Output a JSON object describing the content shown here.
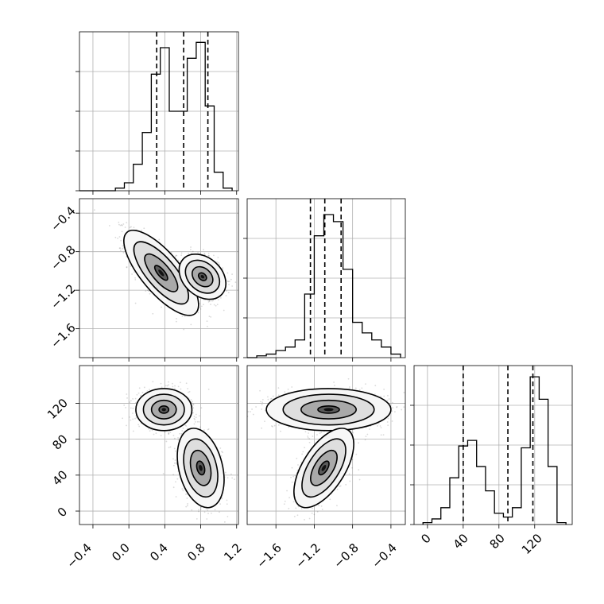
{
  "chart_data": {
    "type": "corner",
    "parameters": [
      {
        "name": "",
        "range": [
          -0.55,
          1.22
        ],
        "ticks": [
          -0.4,
          0.0,
          0.4,
          0.8,
          1.2
        ]
      },
      {
        "name": "",
        "range": [
          -1.9,
          -0.25
        ],
        "ticks": [
          -1.6,
          -1.2,
          -0.8,
          -0.4
        ]
      },
      {
        "name": "",
        "range": [
          -15,
          162
        ],
        "ticks": [
          0,
          40,
          80,
          120
        ]
      }
    ],
    "tick_labels": {
      "p0": [
        "−0.4",
        "0.0",
        "0.4",
        "0.8",
        "1.2"
      ],
      "p1": [
        "−1.6",
        "−1.2",
        "−0.8",
        "−0.4"
      ],
      "p2": [
        "0",
        "40",
        "80",
        "120"
      ]
    },
    "marginals": [
      {
        "param": 0,
        "bin_edges": [
          -0.55,
          -0.45,
          -0.35,
          -0.25,
          -0.15,
          -0.05,
          0.05,
          0.15,
          0.25,
          0.35,
          0.45,
          0.55,
          0.65,
          0.75,
          0.85,
          0.95,
          1.05,
          1.15
        ],
        "bin_values": [
          0,
          0,
          0,
          0,
          1,
          3,
          10,
          22,
          44,
          54,
          30,
          30,
          50,
          56,
          32,
          7,
          1
        ],
        "quantiles": [
          0.31,
          0.61,
          0.88
        ],
        "ylim": [
          0,
          60
        ]
      },
      {
        "param": 1,
        "bin_edges": [
          -1.9,
          -1.8,
          -1.7,
          -1.6,
          -1.5,
          -1.4,
          -1.3,
          -1.2,
          -1.1,
          -1.0,
          -0.9,
          -0.8,
          -0.7,
          -0.6,
          -0.5,
          -0.4,
          -0.3
        ],
        "bin_values": [
          0,
          1,
          2,
          4,
          6,
          10,
          36,
          69,
          81,
          77,
          50,
          20,
          14,
          10,
          6,
          2
        ],
        "quantiles": [
          -1.24,
          -1.09,
          -0.92
        ],
        "ylim": [
          0,
          90
        ]
      },
      {
        "param": 2,
        "bin_edges": [
          -5,
          5,
          15,
          25,
          35,
          45,
          55,
          65,
          75,
          85,
          95,
          105,
          115,
          125,
          135,
          145,
          155
        ],
        "bin_values": [
          1,
          3,
          9,
          25,
          42,
          45,
          31,
          18,
          6,
          4,
          9,
          41,
          79,
          67,
          31,
          1
        ],
        "quantiles": [
          40,
          90,
          118
        ],
        "ylim": [
          0,
          85
        ]
      }
    ],
    "joint": [
      {
        "x_param": 0,
        "y_param": 1,
        "clusters": [
          {
            "mean": [
              0.36,
              -1.02
            ],
            "sd": [
              0.16,
              0.17
            ],
            "corr": -0.75,
            "weight": 0.5
          },
          {
            "mean": [
              0.82,
              -1.06
            ],
            "sd": [
              0.1,
              0.09
            ],
            "corr": -0.3,
            "weight": 0.5
          }
        ]
      },
      {
        "x_param": 0,
        "y_param": 2,
        "clusters": [
          {
            "mean": [
              0.39,
              113
            ],
            "sd": [
              0.12,
              9
            ],
            "corr": 0.0,
            "weight": 0.5
          },
          {
            "mean": [
              0.8,
              48
            ],
            "sd": [
              0.1,
              17
            ],
            "corr": -0.3,
            "weight": 0.5
          }
        ]
      },
      {
        "x_param": 1,
        "y_param": 2,
        "clusters": [
          {
            "mean": [
              -1.05,
              113
            ],
            "sd": [
              0.25,
              9
            ],
            "corr": 0.0,
            "weight": 0.5
          },
          {
            "mean": [
              -1.1,
              48
            ],
            "sd": [
              0.12,
              17
            ],
            "corr": 0.6,
            "weight": 0.5
          }
        ]
      }
    ],
    "grid": true,
    "contour_fill": "grayscale",
    "legend": "none"
  }
}
